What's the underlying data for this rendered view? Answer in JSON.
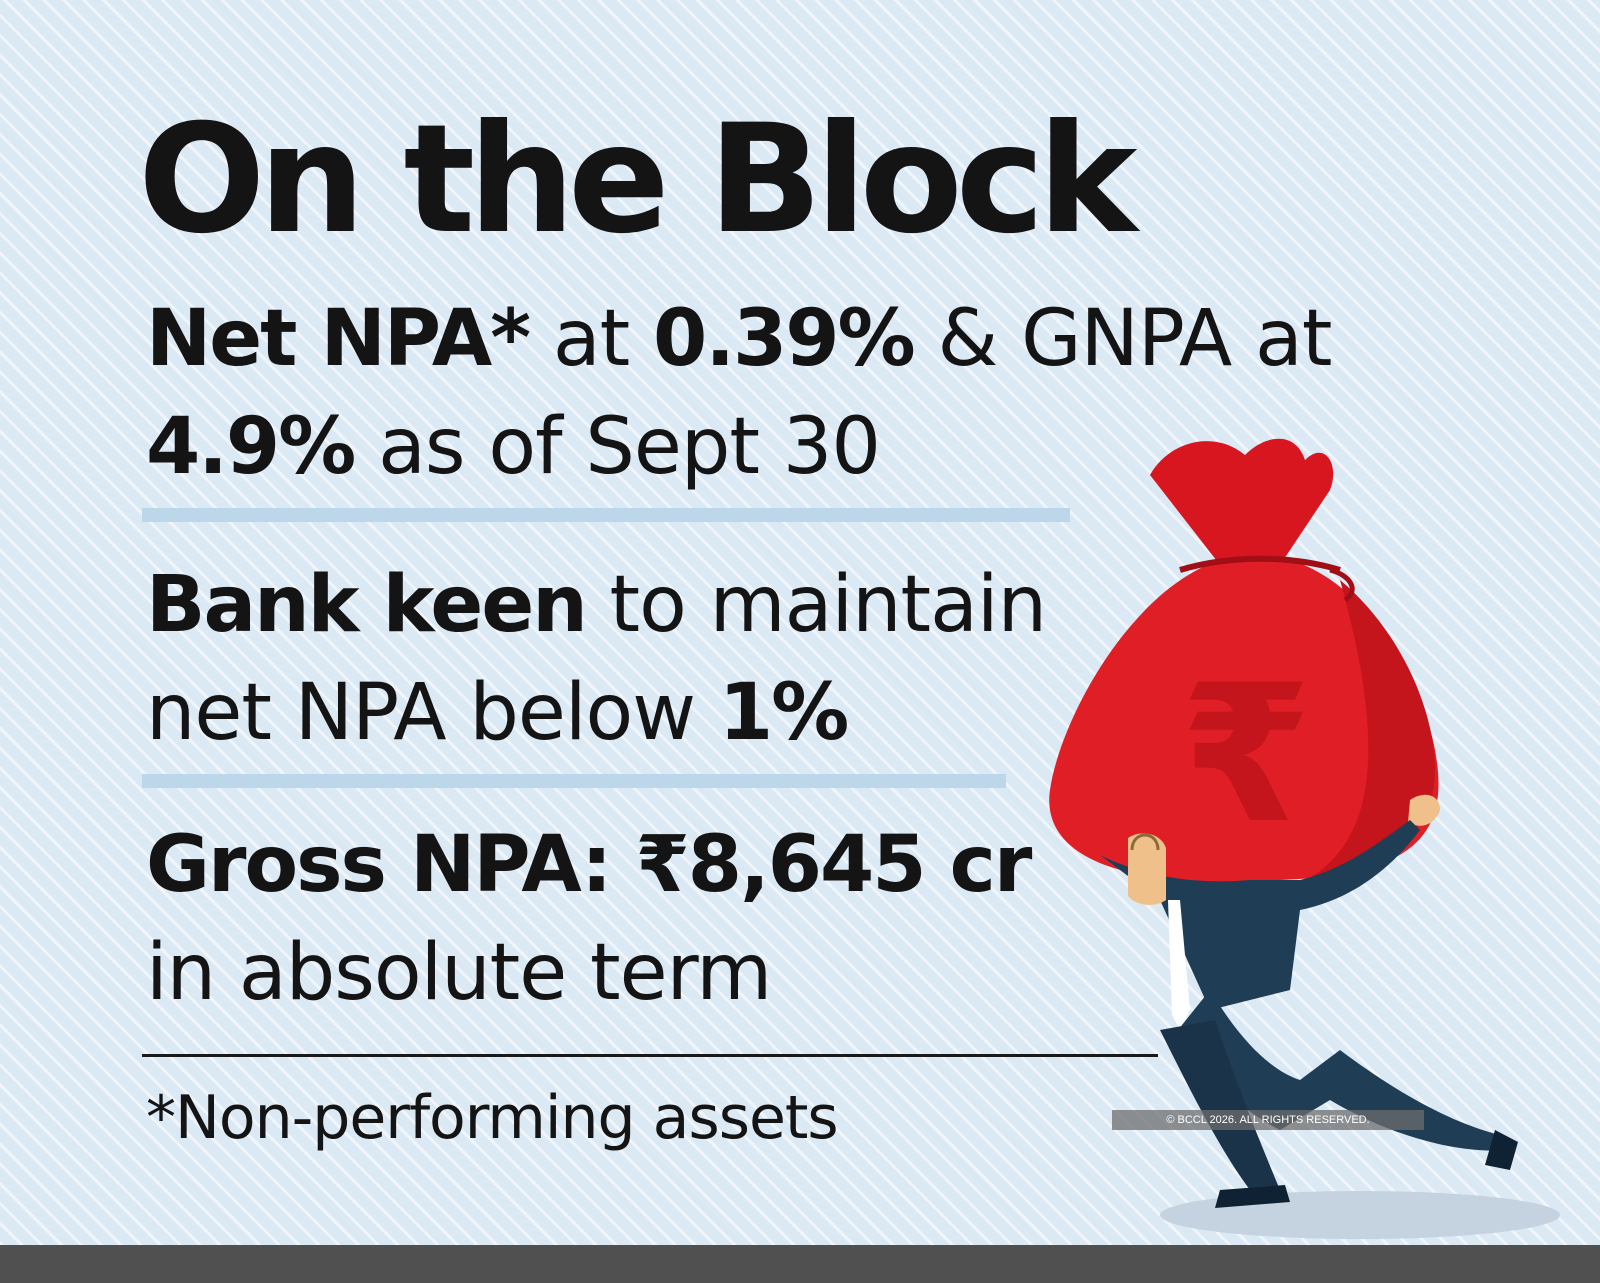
{
  "title": "On the Block",
  "facts": [
    {
      "line1": {
        "bold_a": "Net NPA*",
        "text_a": " at ",
        "bold_b": "0.39%",
        "text_b": " & GNPA at"
      },
      "line2": {
        "bold_a": "4.9%",
        "text_a": " as of Sept 30"
      }
    },
    {
      "line1": {
        "bold_a": "Bank keen",
        "text_a": " to maintain"
      },
      "line2": {
        "text_a": "net NPA below ",
        "bold_a": "1%"
      }
    },
    {
      "line1": {
        "bold_a": "Gross NPA: ₹8,645 cr"
      },
      "line2": {
        "text_a": "in absolute term"
      }
    }
  ],
  "footnote": "*Non-performing assets",
  "copyright": "© BCCL 2026. ALL RIGHTS RESERVED.",
  "illustration": {
    "bag_symbol": "₹",
    "icon": "money-bag-carrier-icon"
  },
  "colors": {
    "background": "#dbe9f4",
    "text": "#141414",
    "bag_red": "#e01e26",
    "suit_navy": "#1f3d55",
    "separator_blue": "#bcd6ea"
  }
}
